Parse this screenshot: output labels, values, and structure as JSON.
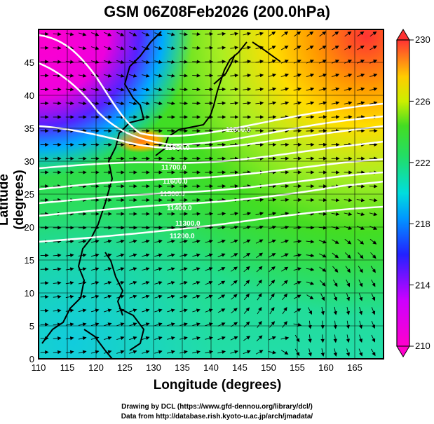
{
  "title": "GSM 06Z08Feb2026 (200.0hPa)",
  "x_axis": {
    "label": "Longitude (degrees)",
    "ticks": [
      "110",
      "115",
      "120",
      "125",
      "130",
      "135",
      "140",
      "145",
      "150",
      "155",
      "160",
      "165"
    ]
  },
  "y_axis": {
    "label": "Latitude  (degrees)",
    "ticks": [
      "0",
      "5",
      "10",
      "15",
      "20",
      "25",
      "30",
      "35",
      "40",
      "45"
    ]
  },
  "colorbar": {
    "ticks": [
      "210",
      "214",
      "218",
      "222",
      "226",
      "230"
    ]
  },
  "contour_labels": [
    "11800.0",
    "11800.0",
    "11700.0",
    "11600.0",
    "11500.0",
    "11400.0",
    "11300.0",
    "11200.0"
  ],
  "footer": {
    "line1": "Drawing by DCL (https://www.gfd-dennou.org/library/dcl/)",
    "line2": "Data from http://database.rish.kyoto-u.ac.jp/arch/jmadata/"
  },
  "colors": {
    "magenta": "#ff00cc",
    "blue": "#1a1aff",
    "cyan": "#00ccff",
    "green": "#33dd22",
    "yellow": "#ffee00",
    "orange": "#ff9900",
    "red": "#ff3333"
  },
  "chart_data": {
    "type": "heatmap",
    "title": "GSM 06Z08Feb2026 (200.0hPa)",
    "xlabel": "Longitude (degrees)",
    "ylabel": "Latitude  (degrees)",
    "xlim": [
      110,
      170
    ],
    "ylim": [
      0,
      50
    ],
    "colorbar_range": [
      210,
      230
    ],
    "colorbar_ticks": [
      210,
      214,
      218,
      222,
      226,
      230
    ],
    "grid": true,
    "overlays": [
      "streamline vectors",
      "geopotential height contours",
      "coastlines"
    ]
  }
}
